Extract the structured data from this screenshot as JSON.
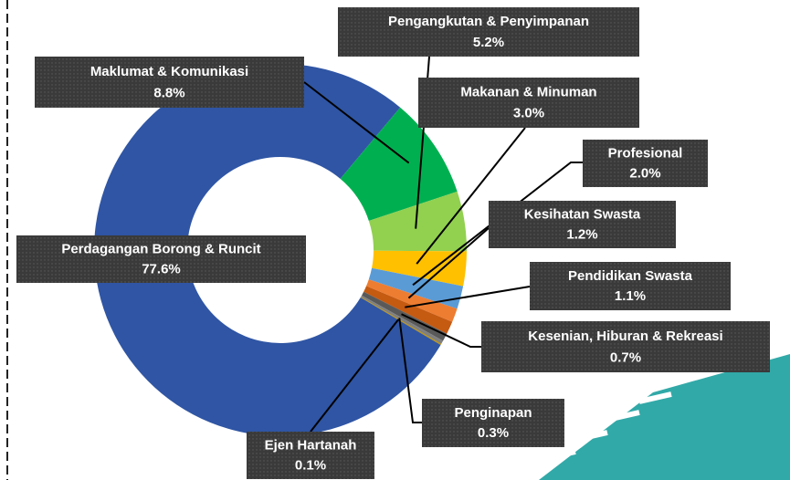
{
  "chart_data": {
    "type": "donut",
    "categories": [
      "Maklumat & Komunikasi",
      "Pengangkutan & Penyimpanan",
      "Makanan & Minuman",
      "Profesional",
      "Kesihatan Swasta",
      "Pendidikan Swasta",
      "Kesenian, Hiburan & Rekreasi",
      "Penginapan",
      "Ejen Hartanah",
      "Perdagangan Borong & Runcit"
    ],
    "values": [
      8.8,
      5.2,
      3.0,
      2.0,
      1.2,
      1.1,
      0.7,
      0.3,
      0.1,
      77.6
    ],
    "value_labels": [
      "8.8%",
      "5.2%",
      "3.0%",
      "2.0%",
      "1.2%",
      "1.1%",
      "0.7%",
      "0.3%",
      "0.1%",
      "77.6%"
    ],
    "colors": [
      "#00b050",
      "#92d050",
      "#ffc000",
      "#5b9bd5",
      "#ed7d31",
      "#c55a11",
      "#595959",
      "#7f7f7f",
      "#bf9000",
      "#2f55a4"
    ]
  }
}
